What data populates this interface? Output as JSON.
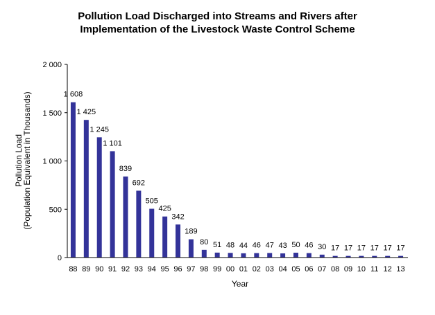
{
  "chart_data": {
    "type": "bar",
    "title_line1": "Pollution Load Discharged into Streams and Rivers after",
    "title_line2": "Implementation of the Livestock Waste Control Scheme",
    "xlabel": "Year",
    "ylabel_line1": "Pollution Load",
    "ylabel_line2": "(Population Equivalent in Thousands)",
    "ylim": [
      0,
      2000
    ],
    "yticks": [
      0,
      500,
      1000,
      1500,
      2000
    ],
    "ytick_labels": [
      "0",
      "500",
      "1 000",
      "1 500",
      "2 000"
    ],
    "grid": false,
    "bar_color": "#333399",
    "categories": [
      "88",
      "89",
      "90",
      "91",
      "92",
      "93",
      "94",
      "95",
      "96",
      "97",
      "98",
      "99",
      "00",
      "01",
      "02",
      "03",
      "04",
      "05",
      "06",
      "07",
      "08",
      "09",
      "10",
      "11",
      "12",
      "13"
    ],
    "values": [
      1608,
      1425,
      1245,
      1101,
      839,
      692,
      505,
      425,
      342,
      189,
      80,
      51,
      48,
      44,
      46,
      47,
      43,
      50,
      46,
      30,
      17,
      17,
      17,
      17,
      17,
      17
    ],
    "value_labels": [
      "1 608",
      "1 425",
      "1 245",
      "1 101",
      "839",
      "692",
      "505",
      "425",
      "342",
      "189",
      "80",
      "51",
      "48",
      "44",
      "46",
      "47",
      "43",
      "50",
      "46",
      "30",
      "17",
      "17",
      "17",
      "17",
      "17",
      "17"
    ]
  }
}
